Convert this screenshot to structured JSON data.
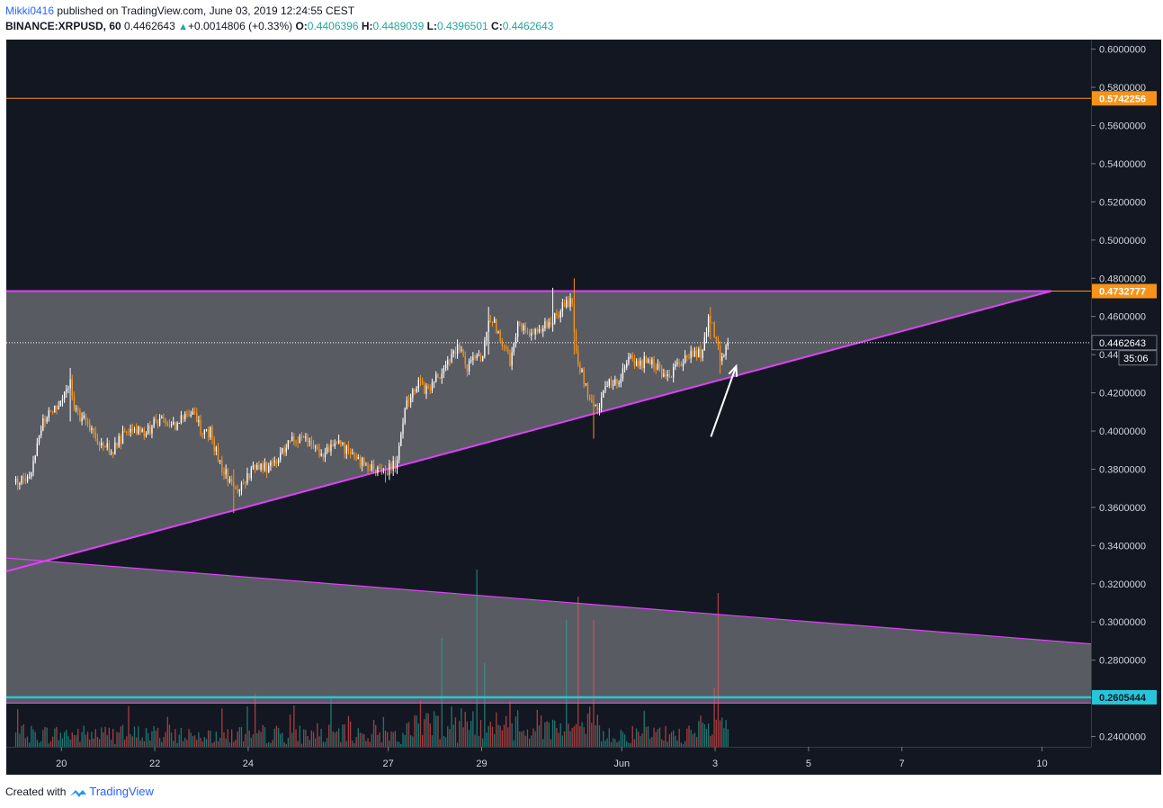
{
  "header": {
    "user": "Mikki0416",
    "published": "published on TradingView.com, June 03, 2019 12:24:55 CEST",
    "symbol": "BINANCE:XRPUSD, 60",
    "last": "0.4462643",
    "change_arrow": "▲",
    "change": "+0.0014806 (+0.33%)",
    "o_label": "O:",
    "o_value": "0.4406396",
    "h_label": "H:",
    "h_value": "0.4489039",
    "l_label": "L:",
    "l_value": "0.4396501",
    "c_label": "C:",
    "c_value": "0.4462643"
  },
  "footer": {
    "created": "Created with",
    "brand": "TradingView",
    "logo_icon": "tradingview-logo-icon"
  },
  "colors": {
    "background": "#131722",
    "up": "#ffffff",
    "down": "#f7931a",
    "trendline": "#e040fb",
    "support": "#26c6da",
    "resistance": "#f7931a",
    "triangle_fill": "#5d5f66",
    "volume_up": "#26a69a",
    "volume_down": "#ef5350"
  },
  "chart_data": {
    "type": "candlestick",
    "title": "BINANCE:XRPUSD, 60",
    "ylim": [
      0.22,
      0.605
    ],
    "y_ticks": [
      "0.6000000",
      "0.5800000",
      "0.5600000",
      "0.5400000",
      "0.5200000",
      "0.5000000",
      "0.4800000",
      "0.4600000",
      "0.4400000",
      "0.4200000",
      "0.4000000",
      "0.3800000",
      "0.3600000",
      "0.3400000",
      "0.3200000",
      "0.3000000",
      "0.2800000",
      "0.2600000",
      "0.2400000"
    ],
    "x_ticks": [
      {
        "label": "20",
        "day": 1
      },
      {
        "label": "22",
        "day": 3
      },
      {
        "label": "24",
        "day": 5
      },
      {
        "label": "27",
        "day": 8
      },
      {
        "label": "29",
        "day": 10
      },
      {
        "label": "Jun",
        "day": 13
      },
      {
        "label": "3",
        "day": 15
      },
      {
        "label": "5",
        "day": 17
      },
      {
        "label": "7",
        "day": 19
      },
      {
        "label": "10",
        "day": 22
      }
    ],
    "xlim_days": [
      -0.18,
      23.05
    ],
    "hours_shown": 352,
    "price_path": [
      [
        0,
        0.373
      ],
      [
        8,
        0.378
      ],
      [
        14,
        0.406
      ],
      [
        22,
        0.415
      ],
      [
        28,
        0.425
      ],
      [
        30,
        0.41
      ],
      [
        36,
        0.405
      ],
      [
        42,
        0.396
      ],
      [
        50,
        0.39
      ],
      [
        58,
        0.402
      ],
      [
        66,
        0.399
      ],
      [
        74,
        0.406
      ],
      [
        82,
        0.403
      ],
      [
        88,
        0.41
      ],
      [
        92,
        0.408
      ],
      [
        96,
        0.398
      ],
      [
        100,
        0.4
      ],
      [
        104,
        0.385
      ],
      [
        108,
        0.377
      ],
      [
        114,
        0.367
      ],
      [
        118,
        0.374
      ],
      [
        124,
        0.382
      ],
      [
        130,
        0.38
      ],
      [
        134,
        0.385
      ],
      [
        140,
        0.394
      ],
      [
        146,
        0.397
      ],
      [
        152,
        0.391
      ],
      [
        158,
        0.389
      ],
      [
        166,
        0.393
      ],
      [
        172,
        0.389
      ],
      [
        178,
        0.383
      ],
      [
        184,
        0.381
      ],
      [
        190,
        0.378
      ],
      [
        196,
        0.384
      ],
      [
        200,
        0.413
      ],
      [
        206,
        0.425
      ],
      [
        212,
        0.421
      ],
      [
        218,
        0.43
      ],
      [
        224,
        0.44
      ],
      [
        228,
        0.445
      ],
      [
        232,
        0.434
      ],
      [
        236,
        0.438
      ],
      [
        240,
        0.44
      ],
      [
        244,
        0.46
      ],
      [
        248,
        0.452
      ],
      [
        254,
        0.437
      ],
      [
        258,
        0.455
      ],
      [
        264,
        0.452
      ],
      [
        268,
        0.45
      ],
      [
        272,
        0.455
      ],
      [
        278,
        0.46
      ],
      [
        282,
        0.466
      ],
      [
        286,
        0.468
      ],
      [
        288,
        0.44
      ],
      [
        292,
        0.427
      ],
      [
        296,
        0.414
      ],
      [
        300,
        0.413
      ],
      [
        304,
        0.425
      ],
      [
        310,
        0.426
      ],
      [
        316,
        0.438
      ],
      [
        320,
        0.434
      ],
      [
        324,
        0.438
      ],
      [
        330,
        0.434
      ],
      [
        334,
        0.427
      ],
      [
        338,
        0.432
      ],
      [
        344,
        0.438
      ],
      [
        348,
        0.442
      ],
      [
        352,
        0.44
      ],
      [
        356,
        0.459
      ],
      [
        360,
        0.45
      ],
      [
        362,
        0.437
      ],
      [
        364,
        0.439
      ],
      [
        366,
        0.446
      ]
    ],
    "spikes": [
      {
        "hour": 28,
        "high": 0.433,
        "low": 0.405
      },
      {
        "hour": 112,
        "high": 0.38,
        "low": 0.357
      },
      {
        "hour": 190,
        "high": 0.382,
        "low": 0.373
      },
      {
        "hour": 243,
        "high": 0.465,
        "low": 0.44
      },
      {
        "hour": 276,
        "high": 0.475,
        "low": 0.452
      },
      {
        "hour": 287,
        "high": 0.48,
        "low": 0.44
      },
      {
        "hour": 297,
        "high": 0.419,
        "low": 0.396
      },
      {
        "hour": 357,
        "high": 0.465,
        "low": 0.448
      },
      {
        "hour": 362,
        "high": 0.447,
        "low": 0.43
      }
    ],
    "last_price": 0.4462643,
    "last_price_label": "0.4462643",
    "countdown": "35:06",
    "price_lines": [
      {
        "value": 0.5742256,
        "label": "0.5742256",
        "color": "#f7931a"
      },
      {
        "value": 0.4732777,
        "label": "0.4732777",
        "color": "#f7931a"
      },
      {
        "value": 0.2605444,
        "label": "0.2605444",
        "color": "#26c6da"
      }
    ],
    "ascending_triangle": {
      "top": 0.4732777,
      "start_day": -0.18,
      "start_bottom": 0.3265,
      "apex_day": 22.2
    },
    "falling_channel": {
      "top_start": 0.3335,
      "top_end": 0.2885,
      "bottom": 0.2575
    },
    "volume_spikes": [
      {
        "hour": 219,
        "vol": 62
      },
      {
        "hour": 237,
        "vol": 100
      },
      {
        "hour": 241,
        "vol": 48
      },
      {
        "hour": 283,
        "vol": 72
      },
      {
        "hour": 289,
        "vol": 85
      },
      {
        "hour": 297,
        "vol": 72
      },
      {
        "hour": 361,
        "vol": 87
      }
    ],
    "annotation": {
      "type": "arrow",
      "from_day": 14.91,
      "from_price": 0.397,
      "to_day": 15.45,
      "to_price": 0.434
    }
  }
}
